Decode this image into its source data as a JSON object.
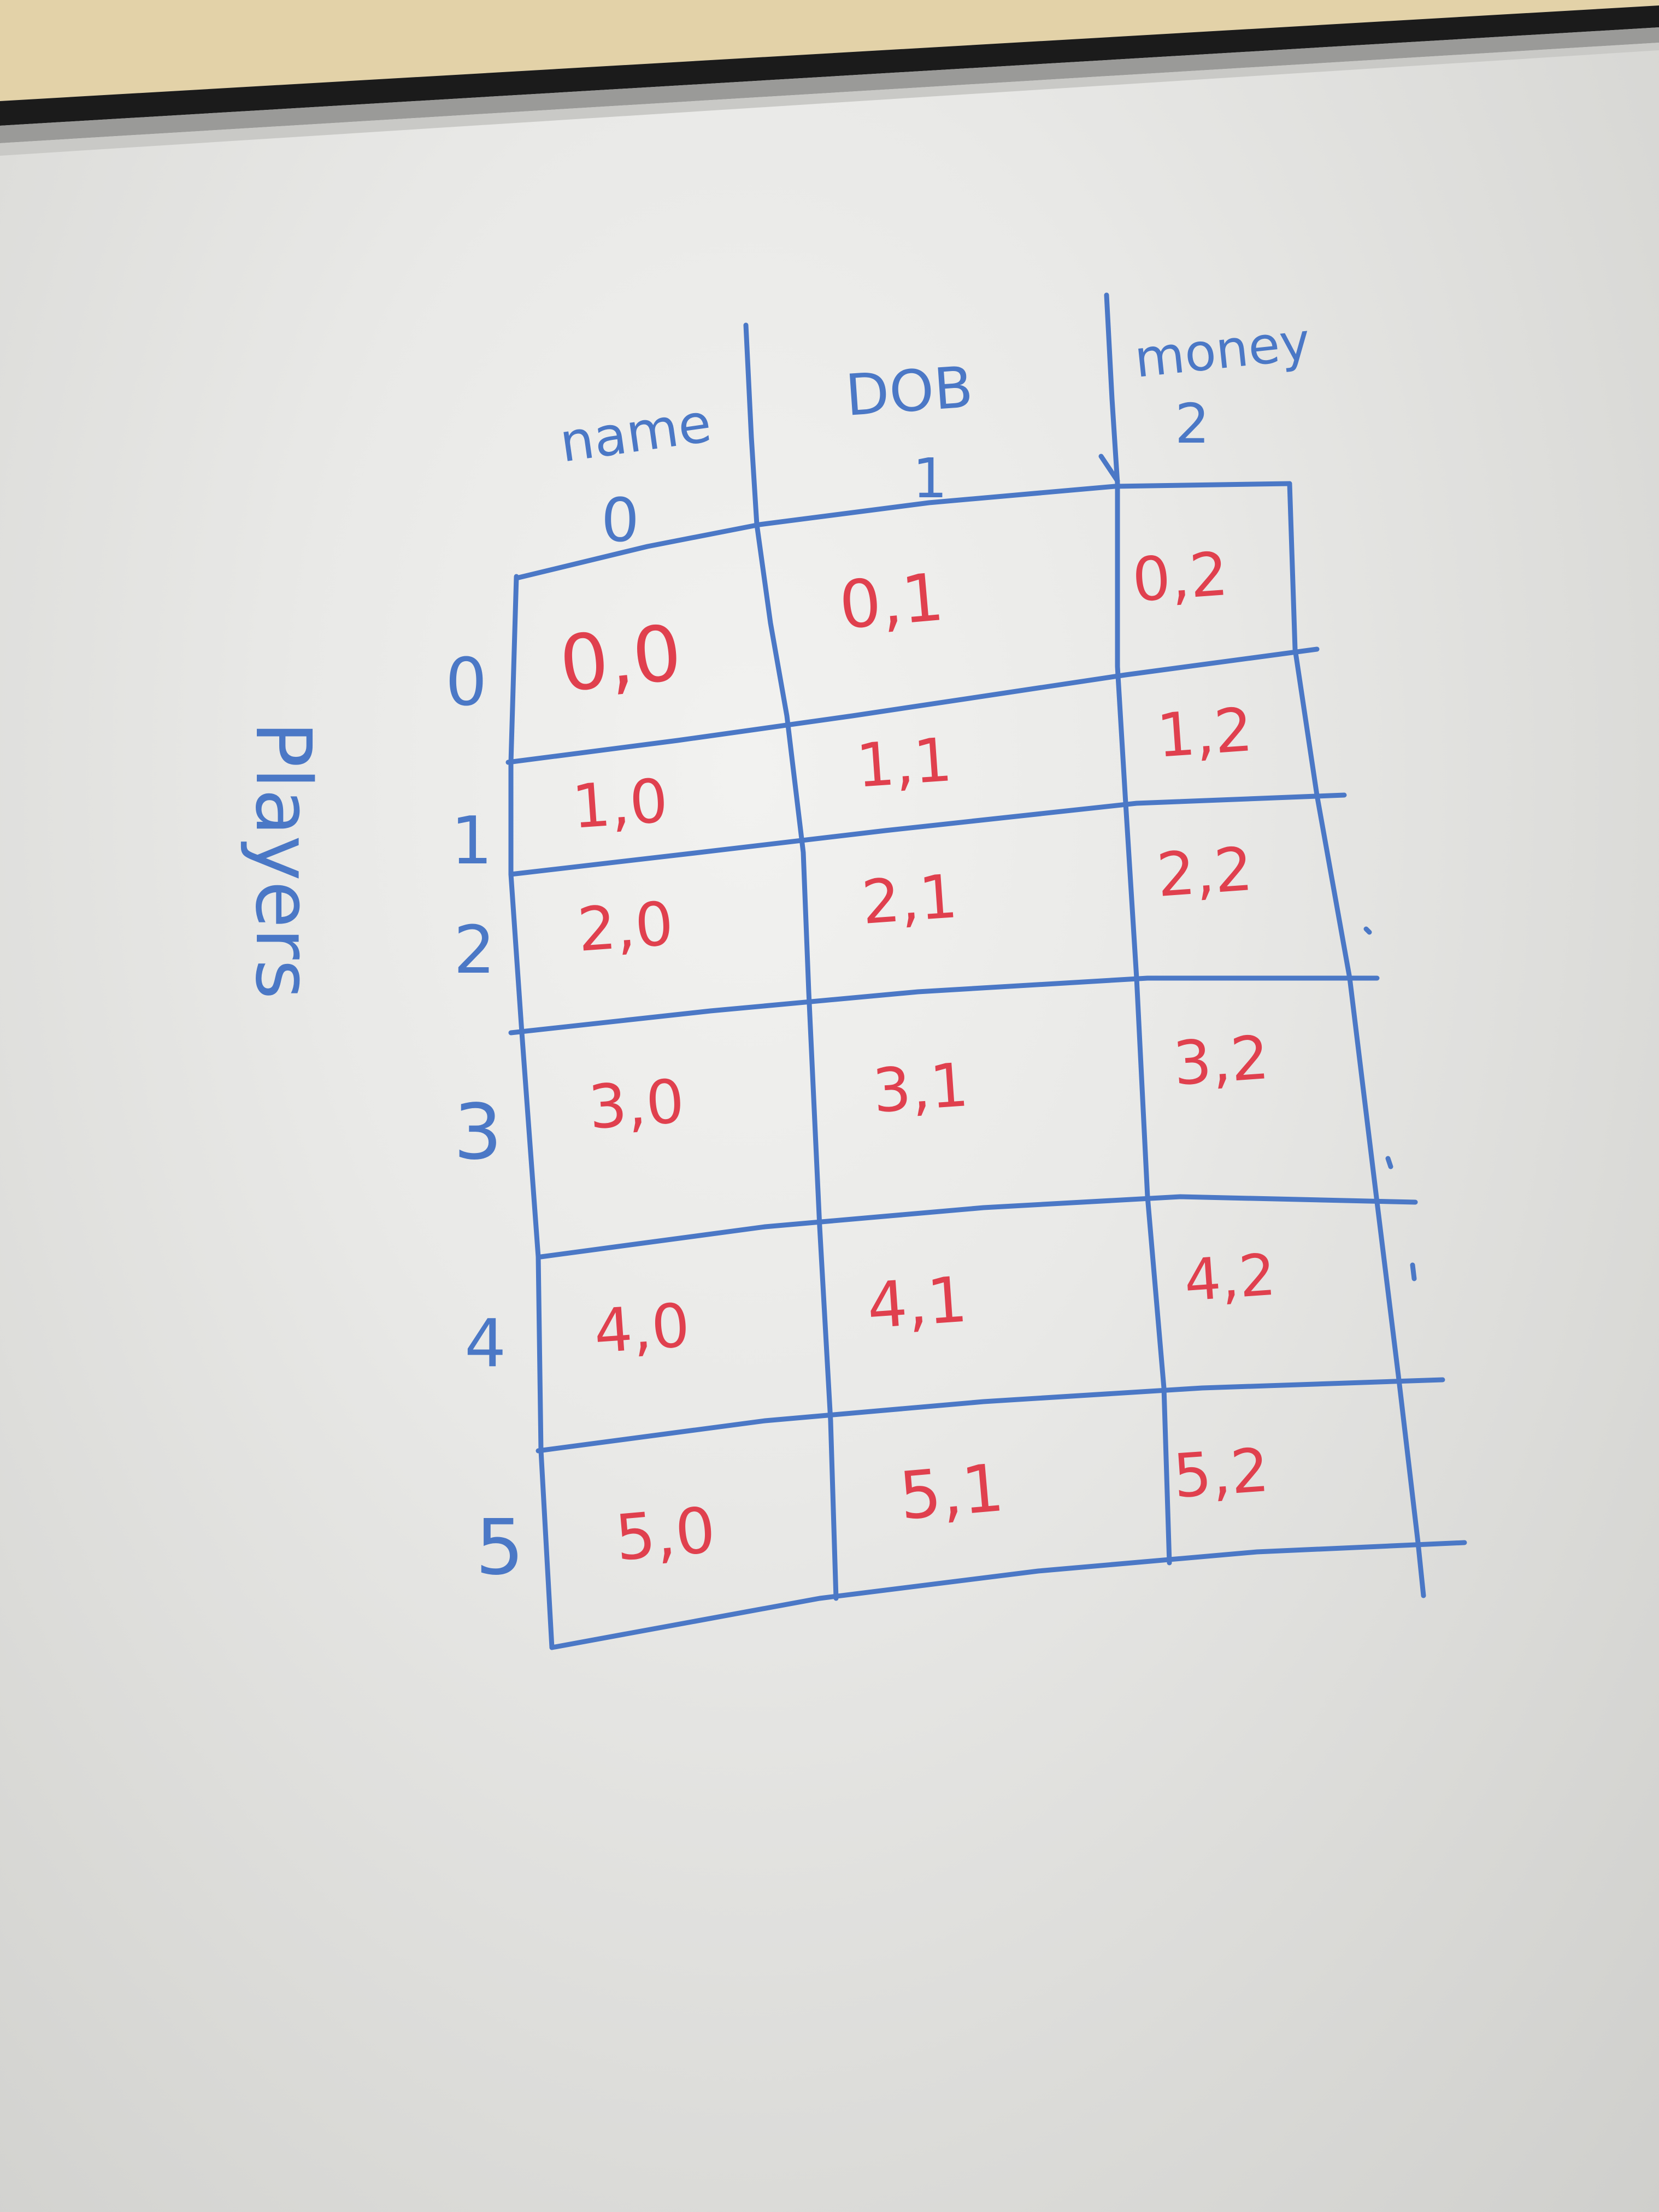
{
  "axis_label": "Players",
  "columns": [
    {
      "header": "name",
      "index": "0"
    },
    {
      "header": "DOB",
      "index": "1"
    },
    {
      "header": "money",
      "index": "2"
    }
  ],
  "row_indices": [
    "0",
    "1",
    "2",
    "3",
    "4",
    "5"
  ],
  "cells": [
    [
      "0,0",
      "0,1",
      "0,2"
    ],
    [
      "1,0",
      "1,1",
      "1,2"
    ],
    [
      "2,0",
      "2,1",
      "2,2"
    ],
    [
      "3,0",
      "3,1",
      "3,2"
    ],
    [
      "4,0",
      "4,1",
      "4,2"
    ],
    [
      "5,0",
      "5,1",
      "5,2"
    ]
  ],
  "colors": {
    "grid_ink": "#4b78c6",
    "cell_ink": "#e0404e",
    "board": "#e9e9e7"
  }
}
